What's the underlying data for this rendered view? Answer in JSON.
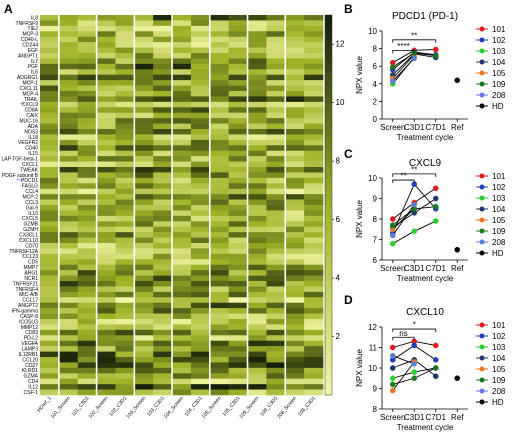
{
  "colors": {
    "101": "#e31a1c",
    "102": "#1f3fbf",
    "103": "#2ecc2e",
    "104": "#1a3a6b",
    "105": "#e87722",
    "109": "#1b7a1b",
    "208": "#5b7fd6",
    "HD": "#000000"
  },
  "chart_data": [
    {
      "type": "heatmap",
      "panel": "A",
      "columns": [
        "HDref_1",
        "101_Screen",
        "101_C3D1",
        "102_Screen",
        "102_C3D1",
        "103_Screen",
        "103_C3D1",
        "104_Screen",
        "104_C3D1",
        "105_Screen",
        "105_C3D1",
        "109_Screen",
        "109_C3D1",
        "208_Screen",
        "208_C3D1"
      ],
      "rows": [
        "IL8",
        "TNFRSF9",
        "TIE2",
        "MCP-3",
        "CD40-L",
        "CD244",
        "EGF",
        "ANGPT1",
        "IL7",
        "PGF",
        "IL6",
        "ADGRG1",
        "MCP-1",
        "CXCL11",
        "MCP-4",
        "TRAIL",
        "CXCL9",
        "CD8A",
        "CAIX",
        "MUC-16",
        "ADA",
        "NOS3",
        "IL18",
        "VEGFR2",
        "CD40",
        "IL15",
        "LAP TGF-beta-1",
        "CXCL1",
        "TWEAK",
        "PDGF subunit B",
        "PDCD1",
        "FASLG",
        "CCL4",
        "MCP-2",
        "CCL3",
        "Gal-9",
        "IL10",
        "CXCL5",
        "GZMB",
        "GZMH",
        "CX3CL1",
        "CXCL10",
        "CD70",
        "TNFRSF12A",
        "CCL23",
        "CD5",
        "MMP7",
        "ARG1",
        "NCR1",
        "TNFRSF21",
        "TNFRSF4",
        "MIC-A/B",
        "CCL17",
        "ANGPT2",
        "IFN-gamma",
        "CASP-8",
        "ICOSLG",
        "MMP12",
        "CD83",
        "PD-L2",
        "VEGFA",
        "LAMP3",
        "IL12RB1",
        "CCL20",
        "CD27",
        "KLRD1",
        "GZMA",
        "CD4",
        "IL12",
        "CSF-1"
      ],
      "row_labels_shown": [
        "IL8",
        "TNFRSF9",
        "TIE2",
        "MCP-3",
        "CD40-L",
        "CD244",
        "EGF",
        "ANGPT1",
        "IL7",
        "PGF",
        "IL6",
        "ADGRG1",
        "MCP-1",
        "CXCL11",
        "MCP-4",
        "TRAIL",
        "CXCL9",
        "CD8A",
        "CAIX",
        "MUC-16",
        "ADA",
        "NOS3",
        "IL18",
        "VEGFR2",
        "CD40",
        "IL15",
        "LAP TGF-beta-1",
        "CXCL1",
        "TWEAK",
        "PDGF subunit B",
        "PDCD1",
        "FASLG",
        "CCL4",
        "MCP-2",
        "CCL3",
        "Gal-9",
        "IL10",
        "CXCL5",
        "GZMB",
        "GZMH",
        "CX3CL1",
        "CXCL10",
        "CD70",
        "TNFRSF12A",
        "CCL23",
        "CD5",
        "MMP7",
        "ARG1",
        "NCR1",
        "TNFRSF21",
        "TNFRSF4",
        "MIC-A/B",
        "CCL17",
        "ANGPT2",
        "IFN-gamma",
        "CASP-8",
        "ICOSLG",
        "MMP12",
        "CD83",
        "PD-L2",
        "VEGFA",
        "LAMP3",
        "IL12RB1",
        "CCL20",
        "CD27",
        "KLRD1",
        "GZMA",
        "CD4",
        "IL12",
        "CSF-1"
      ],
      "row_marks": {
        "CCL23": "*",
        "CXCL9": "**",
        "PDCD1": "****",
        "CXCL10": "*",
        "ARG1": "*"
      },
      "colorbar": {
        "min": 0,
        "max": 13,
        "ticks": [
          2,
          4,
          6,
          8,
          10,
          12
        ],
        "low_color": "#f4f7a8",
        "high_color": "#000000"
      },
      "column_separators_after": [
        0,
        2,
        4,
        6,
        8,
        10,
        12
      ]
    },
    {
      "type": "line",
      "panel": "B",
      "title": "PDCD1 (PD-1)",
      "xlabel": "Treatment cycle",
      "ylabel": "NPX value",
      "categories": [
        "Screen",
        "C3D1",
        "C7D1",
        "Ref"
      ],
      "ylim": [
        0,
        10
      ],
      "yticks": [
        0,
        2,
        4,
        6,
        8,
        10
      ],
      "series": [
        {
          "name": "101",
          "values": [
            6.4,
            7.8,
            7.9,
            null
          ]
        },
        {
          "name": "102",
          "values": [
            5.6,
            7.6,
            7.3,
            null
          ]
        },
        {
          "name": "103",
          "values": [
            4.0,
            7.0,
            null,
            null
          ]
        },
        {
          "name": "104",
          "values": [
            5.0,
            7.4,
            7.0,
            null
          ]
        },
        {
          "name": "105",
          "values": [
            4.6,
            7.3,
            null,
            null
          ]
        },
        {
          "name": "109",
          "values": [
            5.9,
            7.5,
            7.2,
            null
          ]
        },
        {
          "name": "208",
          "values": [
            4.3,
            6.9,
            null,
            null
          ]
        },
        {
          "name": "HD",
          "values": [
            null,
            null,
            null,
            4.4
          ]
        }
      ],
      "brackets": [
        {
          "from": "Screen",
          "to": "C7D1",
          "label": "**",
          "level": 9.0
        },
        {
          "from": "Screen",
          "to": "C3D1",
          "label": "****",
          "level": 7.8
        }
      ]
    },
    {
      "type": "line",
      "panel": "C",
      "title": "CXCL9",
      "xlabel": "Treatment cycle",
      "ylabel": "NPX value",
      "categories": [
        "Screen",
        "C3D1",
        "C7D1",
        "Ref"
      ],
      "ylim": [
        6,
        10
      ],
      "yticks": [
        6,
        7,
        8,
        9,
        10
      ],
      "series": [
        {
          "name": "101",
          "values": [
            8.0,
            8.8,
            9.5,
            null
          ]
        },
        {
          "name": "102",
          "values": [
            7.3,
            9.7,
            8.5,
            null
          ]
        },
        {
          "name": "103",
          "values": [
            6.8,
            7.4,
            7.9,
            null
          ]
        },
        {
          "name": "104",
          "values": [
            7.6,
            8.3,
            9.0,
            null
          ]
        },
        {
          "name": "105",
          "values": [
            7.5,
            8.5,
            null,
            null
          ]
        },
        {
          "name": "109",
          "values": [
            7.7,
            8.5,
            8.6,
            null
          ]
        },
        {
          "name": "208",
          "values": [
            7.2,
            8.7,
            null,
            null
          ]
        },
        {
          "name": "HD",
          "values": [
            null,
            null,
            null,
            6.5
          ]
        }
      ],
      "brackets": [
        {
          "from": "Screen",
          "to": "C7D1",
          "label": "**",
          "level": 10.2
        },
        {
          "from": "Screen",
          "to": "C3D1",
          "label": "**",
          "level": 9.9
        }
      ]
    },
    {
      "type": "line",
      "panel": "D",
      "title": "CXCL10",
      "xlabel": "Treatment cycle",
      "ylabel": "NPX value",
      "categories": [
        "Screen",
        "C3D1",
        "C7D1",
        "Ref"
      ],
      "ylim": [
        8,
        12
      ],
      "yticks": [
        8,
        9,
        10,
        11,
        12
      ],
      "series": [
        {
          "name": "101",
          "values": [
            11.0,
            11.3,
            11.1,
            null
          ]
        },
        {
          "name": "102",
          "values": [
            10.4,
            11.1,
            10.4,
            null
          ]
        },
        {
          "name": "103",
          "values": [
            9.5,
            9.8,
            10.0,
            null
          ]
        },
        {
          "name": "104",
          "values": [
            10.0,
            10.4,
            9.6,
            null
          ]
        },
        {
          "name": "105",
          "values": [
            8.9,
            10.3,
            null,
            null
          ]
        },
        {
          "name": "109",
          "values": [
            9.2,
            9.5,
            10.0,
            null
          ]
        },
        {
          "name": "208",
          "values": [
            10.6,
            10.2,
            null,
            null
          ]
        },
        {
          "name": "HD",
          "values": [
            null,
            null,
            null,
            9.5
          ]
        }
      ],
      "brackets": [
        {
          "from": "Screen",
          "to": "C7D1",
          "label": "*",
          "level": 11.9
        },
        {
          "from": "Screen",
          "to": "C3D1",
          "label": "ns",
          "level": 11.5
        }
      ]
    }
  ],
  "legend": [
    "101",
    "102",
    "103",
    "104",
    "105",
    "109",
    "208",
    "HD"
  ]
}
